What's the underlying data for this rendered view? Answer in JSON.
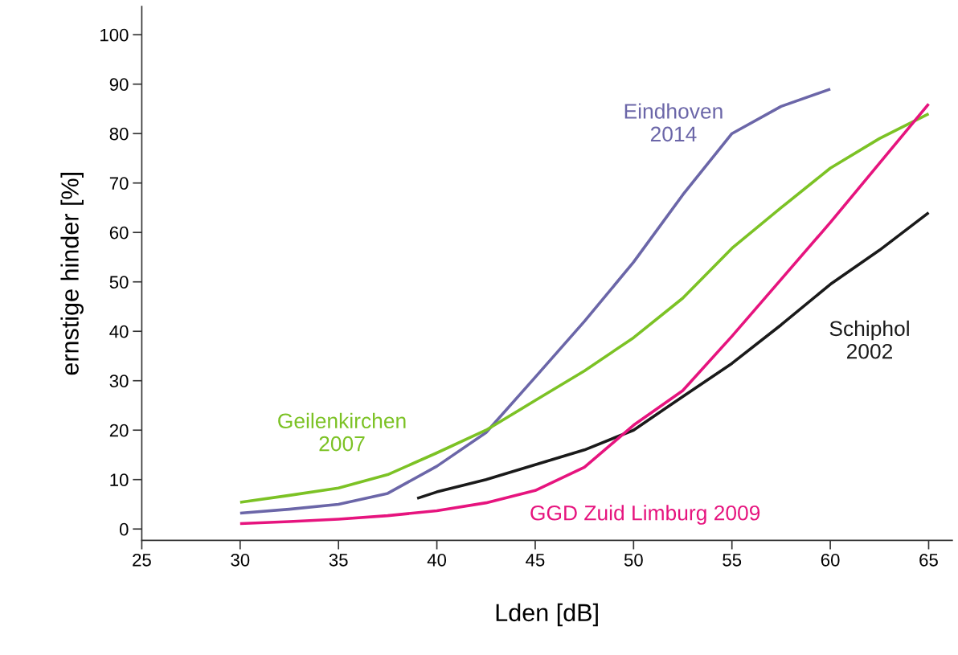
{
  "chart_data": {
    "type": "line",
    "xlabel": "Lden [dB]",
    "ylabel": "ernstige hinder [%]",
    "xlim": [
      25,
      66.2
    ],
    "ylim": [
      -2.3,
      105.7
    ],
    "xticks": [
      25,
      30,
      35,
      40,
      45,
      50,
      55,
      60,
      65
    ],
    "yticks": [
      0,
      10,
      20,
      30,
      40,
      50,
      60,
      70,
      80,
      90,
      100
    ],
    "grid": false,
    "legend": false,
    "marker": "none",
    "line_style": "solid",
    "series": [
      {
        "name": "Eindhoven\n2014",
        "color": "#6b66a8",
        "x": [
          30,
          32.5,
          35,
          37.5,
          40,
          42.5,
          45,
          47.5,
          50,
          52.5,
          55,
          57.5,
          60
        ],
        "values": [
          3.2,
          4,
          5,
          7.2,
          12.7,
          19.5,
          30.7,
          42,
          54,
          67.6,
          80,
          85.5,
          89
        ]
      },
      {
        "name": "Geilenkirchen\n2007",
        "color": "#7cc225",
        "x": [
          30,
          32.5,
          35,
          37.5,
          40,
          42.5,
          45,
          47.5,
          50,
          52.5,
          55,
          57.5,
          60,
          62.5,
          65
        ],
        "values": [
          5.4,
          6.8,
          8.3,
          11,
          15.4,
          20,
          26,
          32,
          38.7,
          46.7,
          56.8,
          65,
          73,
          79,
          84
        ]
      },
      {
        "name": "Schiphol\n2002",
        "color": "#1a1a1a",
        "x": [
          39,
          40,
          42.5,
          45,
          47.5,
          50,
          52.5,
          55,
          57.5,
          60,
          62.5,
          65
        ],
        "values": [
          6.2,
          7.5,
          10,
          13,
          16,
          20,
          26.8,
          33.5,
          41.3,
          49.5,
          56.4,
          64
        ]
      },
      {
        "name": "GGD Zuid Limburg 2009",
        "color": "#e6147e",
        "x": [
          30,
          32.5,
          35,
          37.5,
          40,
          42.5,
          45,
          47.5,
          50,
          52.5,
          55,
          57.5,
          60,
          62.5,
          65
        ],
        "values": [
          1.1,
          1.5,
          2,
          2.7,
          3.7,
          5.3,
          7.8,
          12.5,
          21,
          28,
          39,
          50.5,
          62,
          74,
          86
        ]
      }
    ]
  }
}
